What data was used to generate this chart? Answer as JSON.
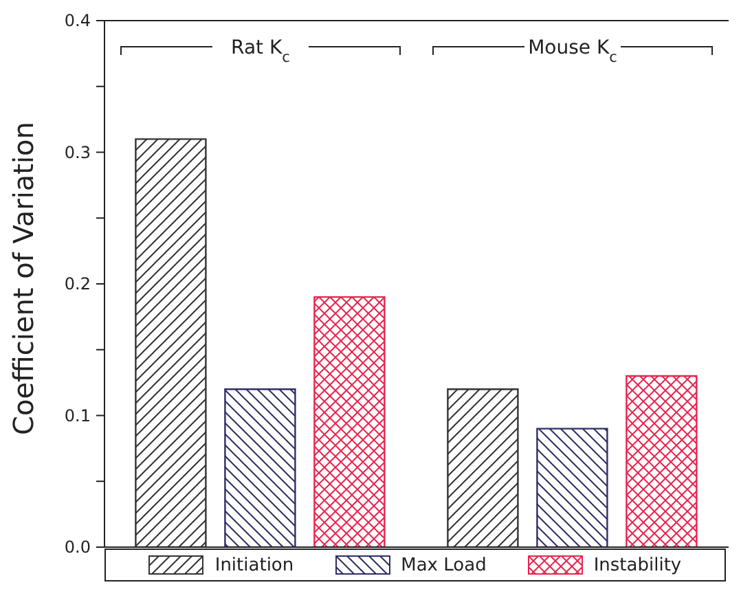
{
  "chart_data": {
    "type": "bar",
    "ylabel": "Coefficient of Variation",
    "categories": [
      "Rat K$_{c}$",
      "Mouse K$_{c}$"
    ],
    "series": [
      {
        "name": "Initiation",
        "color": "#333333",
        "values": [
          0.31,
          0.12
        ]
      },
      {
        "name": "Max Load",
        "color": "#2e2e66",
        "values": [
          0.12,
          0.09
        ]
      },
      {
        "name": "Instability",
        "color": "#e8254f",
        "values": [
          0.19,
          0.13
        ]
      }
    ],
    "ylim": [
      0,
      0.4
    ],
    "yticks": [
      {
        "value": 0,
        "label": "0.0"
      },
      {
        "value": 0.05,
        "label": null
      },
      0.1,
      {
        "value": 0.15,
        "label": null
      },
      0.2,
      {
        "value": 0.25,
        "label": null
      },
      0.3,
      {
        "value": 0.35,
        "label": null
      },
      0.4
    ],
    "grid": false,
    "legend": "bottom"
  }
}
